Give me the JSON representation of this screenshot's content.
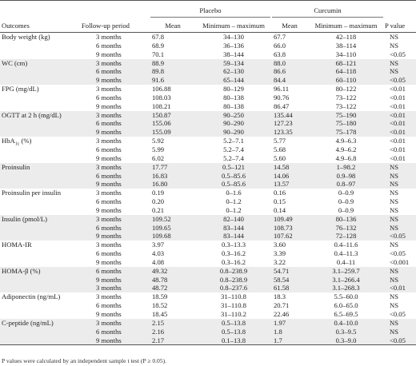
{
  "header": {
    "col_outcomes": "Outcomes",
    "col_followup": "Follow-up period",
    "group_placebo": "Placebo",
    "group_curcumin": "Curcumin",
    "col_mean": "Mean",
    "col_minmax": "Minimum – maximum",
    "col_p": "P value"
  },
  "rows": [
    {
      "outcome": "Body weight (kg)",
      "period": "3 months",
      "p_mean": "67.8",
      "p_range": "34–130",
      "c_mean": "67.7",
      "c_range": "42–118",
      "p": "NS"
    },
    {
      "outcome": "",
      "period": "6 months",
      "p_mean": "68.9",
      "p_range": "36–136",
      "c_mean": "66.0",
      "c_range": "38–114",
      "p": "NS"
    },
    {
      "outcome": "",
      "period": "9 months",
      "p_mean": "70.1",
      "p_range": "38–144",
      "c_mean": "63.8",
      "c_range": "34–110",
      "p": "<0.05"
    },
    {
      "outcome": "WC (cm)",
      "period": "3 months",
      "p_mean": "88.9",
      "p_range": "59–134",
      "c_mean": "88.0",
      "c_range": "68–121",
      "p": "NS"
    },
    {
      "outcome": "",
      "period": "6 months",
      "p_mean": "89.8",
      "p_range": "62–130",
      "c_mean": "86.6",
      "c_range": "64–118",
      "p": "NS"
    },
    {
      "outcome": "",
      "period": "9 months",
      "p_mean": "91.6",
      "p_range": "65–144",
      "c_mean": "84.4",
      "c_range": "60–110",
      "p": "<0.05"
    },
    {
      "outcome": "FPG (mg/dL)",
      "period": "3 months",
      "p_mean": "106.88",
      "p_range": "80–129",
      "c_mean": "96.11",
      "c_range": "80–122",
      "p": "<0.01"
    },
    {
      "outcome": "",
      "period": "6 months",
      "p_mean": "108.03",
      "p_range": "80–138",
      "c_mean": "90.76",
      "c_range": "73–122",
      "p": "<0.01"
    },
    {
      "outcome": "",
      "period": "9 months",
      "p_mean": "108.21",
      "p_range": "80–138",
      "c_mean": "86.47",
      "c_range": "73–122",
      "p": "<0.01"
    },
    {
      "outcome": "OGTT at 2 h (mg/dL)",
      "period": "3 months",
      "p_mean": "150.87",
      "p_range": "90–250",
      "c_mean": "135.44",
      "c_range": "75–190",
      "p": "<0.01"
    },
    {
      "outcome": "",
      "period": "6 months",
      "p_mean": "155.06",
      "p_range": "90–290",
      "c_mean": "127.23",
      "c_range": "75–180",
      "p": "<0.01"
    },
    {
      "outcome": "",
      "period": "9 months",
      "p_mean": "155.09",
      "p_range": "90–290",
      "c_mean": "123.35",
      "c_range": "75–178",
      "p": "<0.01"
    },
    {
      "outcome": "HbA1c (%)",
      "period": "3 months",
      "p_mean": "5.92",
      "p_range": "5.2–7.1",
      "c_mean": "5.77",
      "c_range": "4.9–6.3",
      "p": "<0.01"
    },
    {
      "outcome": "",
      "period": "6 months",
      "p_mean": "5.99",
      "p_range": "5.2–7.4",
      "c_mean": "5.68",
      "c_range": "4.9–6.2",
      "p": "<0.01"
    },
    {
      "outcome": "",
      "period": "9 months",
      "p_mean": "6.02",
      "p_range": "5.2–7.4",
      "c_mean": "5.60",
      "c_range": "4.9–6.8",
      "p": "<0.01"
    },
    {
      "outcome": "Proinsulin",
      "period": "3 months",
      "p_mean": "17.77",
      "p_range": "0.5–121",
      "c_mean": "14.58",
      "c_range": "1–98.2",
      "p": "NS"
    },
    {
      "outcome": "",
      "period": "6 months",
      "p_mean": "16.83",
      "p_range": "0.5–85.6",
      "c_mean": "14.06",
      "c_range": "0.9–98",
      "p": "NS"
    },
    {
      "outcome": "",
      "period": "9 months",
      "p_mean": "16.80",
      "p_range": "0.5–85.6",
      "c_mean": "13.57",
      "c_range": "0.8–97",
      "p": "NS"
    },
    {
      "outcome": "Proinsulin per insulin",
      "period": "3 months",
      "p_mean": "0.19",
      "p_range": "0–1.6",
      "c_mean": "0.16",
      "c_range": "0–0.9",
      "p": "NS"
    },
    {
      "outcome": "",
      "period": "6 months",
      "p_mean": "0.20",
      "p_range": "0–1.2",
      "c_mean": "0.15",
      "c_range": "0–0.9",
      "p": "NS"
    },
    {
      "outcome": "",
      "period": "9 months",
      "p_mean": "0.21",
      "p_range": "0–1.2",
      "c_mean": "0.14",
      "c_range": "0–0.9",
      "p": "NS"
    },
    {
      "outcome": "Insulin (pmol/L)",
      "period": "3 months",
      "p_mean": "109.52",
      "p_range": "82–140",
      "c_mean": "109.49",
      "c_range": "80–136",
      "p": "NS"
    },
    {
      "outcome": "",
      "period": "6 months",
      "p_mean": "109.65",
      "p_range": "83–144",
      "c_mean": "108.73",
      "c_range": "76–132",
      "p": "NS"
    },
    {
      "outcome": "",
      "period": "9 months",
      "p_mean": "109.68",
      "p_range": "83–144",
      "c_mean": "107.62",
      "c_range": "72–128",
      "p": "<0.05"
    },
    {
      "outcome": "HOMA-IR",
      "period": "3 months",
      "p_mean": "3.97",
      "p_range": "0.3–13.3",
      "c_mean": "3.60",
      "c_range": "0.4–11.6",
      "p": "NS"
    },
    {
      "outcome": "",
      "period": "6 months",
      "p_mean": "4.03",
      "p_range": "0.3–16.2",
      "c_mean": "3.39",
      "c_range": "0.4–11.3",
      "p": "<0.05"
    },
    {
      "outcome": "",
      "period": "9 months",
      "p_mean": "4.08",
      "p_range": "0.3–16.2",
      "c_mean": "3.22",
      "c_range": "0.4–11",
      "p": "<0.001"
    },
    {
      "outcome": "HOMA-β (%)",
      "period": "6 months",
      "p_mean": "49.32",
      "p_range": "0.8–238.9",
      "c_mean": "54.71",
      "c_range": "3.1–259.7",
      "p": "NS"
    },
    {
      "outcome": "",
      "period": "9 months",
      "p_mean": "48.78",
      "p_range": "0.8–238.9",
      "c_mean": "58.54",
      "c_range": "3.1–266.4",
      "p": "NS"
    },
    {
      "outcome": "",
      "period": "3 months",
      "p_mean": "48.72",
      "p_range": "0.8–237.6",
      "c_mean": "61.58",
      "c_range": "3.1–268.3",
      "p": "<0.01"
    },
    {
      "outcome": "Adiponectin (ng/mL)",
      "period": "3 months",
      "p_mean": "18.59",
      "p_range": "31–110.8",
      "c_mean": "18.3",
      "c_range": "5.5–60.0",
      "p": "NS"
    },
    {
      "outcome": "",
      "period": "6 months",
      "p_mean": "18.52",
      "p_range": "31–110.8",
      "c_mean": "20.71",
      "c_range": "6.0–65.0",
      "p": "NS"
    },
    {
      "outcome": "",
      "period": "9 months",
      "p_mean": "18.45",
      "p_range": "31–110.2",
      "c_mean": "22.46",
      "c_range": "6.5–69.5",
      "p": "<0.05"
    },
    {
      "outcome": "C-peptide (ng/mL)",
      "period": "3 months",
      "p_mean": "2.15",
      "p_range": "0.5–13.8",
      "c_mean": "1.97",
      "c_range": "0.4–10.0",
      "p": "NS"
    },
    {
      "outcome": "",
      "period": "6 months",
      "p_mean": "2.16",
      "p_range": "0.5–13.8",
      "c_mean": "1.8",
      "c_range": "0.3–9.5",
      "p": "NS"
    },
    {
      "outcome": "",
      "period": "9 months",
      "p_mean": "2.17",
      "p_range": "0.1–13.8",
      "c_mean": "1.7",
      "c_range": "0.3–9.0",
      "p": "<0.05"
    }
  ],
  "footnote": "P values were calculated by an independent sample t test (P ≥ 0.05)."
}
